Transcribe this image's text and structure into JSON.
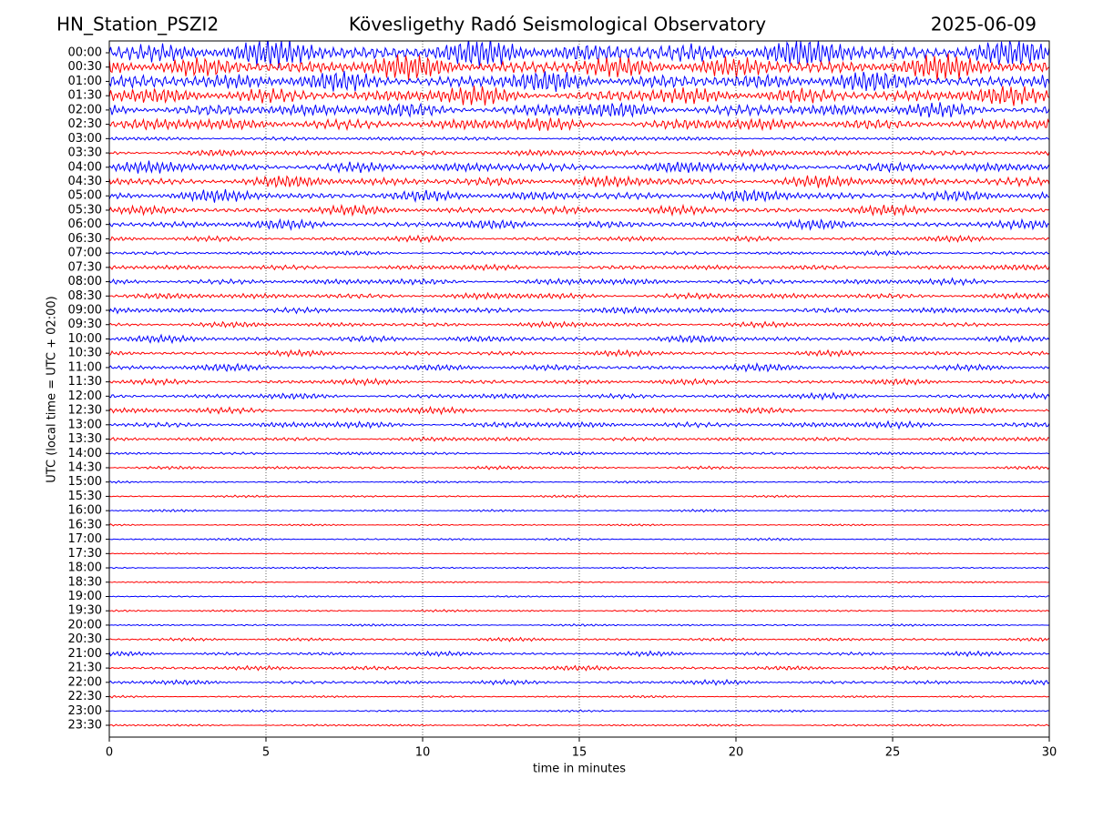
{
  "chart_data": {
    "type": "helicorder",
    "title_left": "HN_Station_PSZI2",
    "title": "Kövesligethy Radó Seismological Observatory",
    "title_right": "2025-06-09",
    "ylabel": "UTC (local time = UTC + 02:00)",
    "xlabel": "time in minutes",
    "xlim": [
      0,
      30
    ],
    "xticks": [
      0,
      5,
      10,
      15,
      20,
      25,
      30
    ],
    "grid": true,
    "colors": [
      "blue",
      "red"
    ],
    "categories": [
      "00:00",
      "00:30",
      "01:00",
      "01:30",
      "02:00",
      "02:30",
      "03:00",
      "03:30",
      "04:00",
      "04:30",
      "05:00",
      "05:30",
      "06:00",
      "06:30",
      "07:00",
      "07:30",
      "08:00",
      "08:30",
      "09:00",
      "09:30",
      "10:00",
      "10:30",
      "11:00",
      "11:30",
      "12:00",
      "12:30",
      "13:00",
      "13:30",
      "14:00",
      "14:30",
      "15:00",
      "15:30",
      "16:00",
      "16:30",
      "17:00",
      "17:30",
      "18:00",
      "18:30",
      "19:00",
      "19:30",
      "20:00",
      "20:30",
      "21:00",
      "21:30",
      "22:00",
      "22:30",
      "23:00",
      "23:30"
    ],
    "values": [
      1.2,
      1.0,
      0.9,
      0.8,
      0.7,
      0.6,
      0.2,
      0.3,
      0.5,
      0.5,
      0.5,
      0.4,
      0.4,
      0.25,
      0.2,
      0.25,
      0.3,
      0.3,
      0.3,
      0.25,
      0.3,
      0.25,
      0.3,
      0.25,
      0.25,
      0.3,
      0.3,
      0.2,
      0.15,
      0.15,
      0.1,
      0.1,
      0.1,
      0.08,
      0.1,
      0.06,
      0.08,
      0.08,
      0.08,
      0.1,
      0.1,
      0.15,
      0.2,
      0.2,
      0.2,
      0.1,
      0.1,
      0.1
    ]
  }
}
